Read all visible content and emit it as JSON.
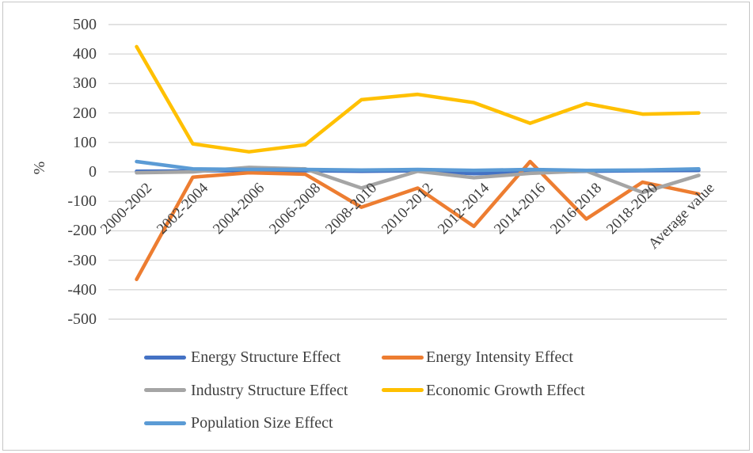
{
  "chart_data": {
    "type": "line",
    "title": "",
    "xlabel": "",
    "ylabel": "%",
    "ylim": [
      -500,
      500
    ],
    "y_ticks": [
      500,
      400,
      300,
      200,
      100,
      0,
      -100,
      -200,
      -300,
      -400,
      -500
    ],
    "grid": "horizontal",
    "legend_position": "bottom",
    "categories": [
      "2000-2002",
      "2002-2004",
      "2004-2006",
      "2006-2008",
      "2008-2010",
      "2010-2012",
      "2012-2014",
      "2014-2016",
      "2016-2018",
      "2018-2020",
      "Average value"
    ],
    "series": [
      {
        "name": "Energy Structure Effect",
        "color": "#4472C4",
        "values": [
          2,
          3,
          5,
          4,
          2,
          4,
          -6,
          -2,
          2,
          4,
          5
        ]
      },
      {
        "name": "Energy Intensity Effect",
        "color": "#ED7D31",
        "values": [
          -365,
          -18,
          -3,
          -8,
          -120,
          -55,
          -185,
          35,
          -160,
          -35,
          -75
        ]
      },
      {
        "name": "Industry Structure Effect",
        "color": "#A5A5A5",
        "values": [
          -3,
          0,
          15,
          10,
          -55,
          2,
          -20,
          -5,
          3,
          -70,
          -12
        ]
      },
      {
        "name": "Economic Growth Effect",
        "color": "#FFC000",
        "values": [
          425,
          95,
          68,
          92,
          245,
          263,
          235,
          165,
          232,
          196,
          200
        ]
      },
      {
        "name": "Population Size Effect",
        "color": "#5B9BD5",
        "values": [
          35,
          10,
          8,
          8,
          6,
          8,
          5,
          8,
          5,
          6,
          10
        ]
      }
    ],
    "colors": {
      "axis_text": "#3f3f3f",
      "gridline": "#d9d9d9",
      "border": "#c6c6c6",
      "background": "#ffffff"
    }
  }
}
